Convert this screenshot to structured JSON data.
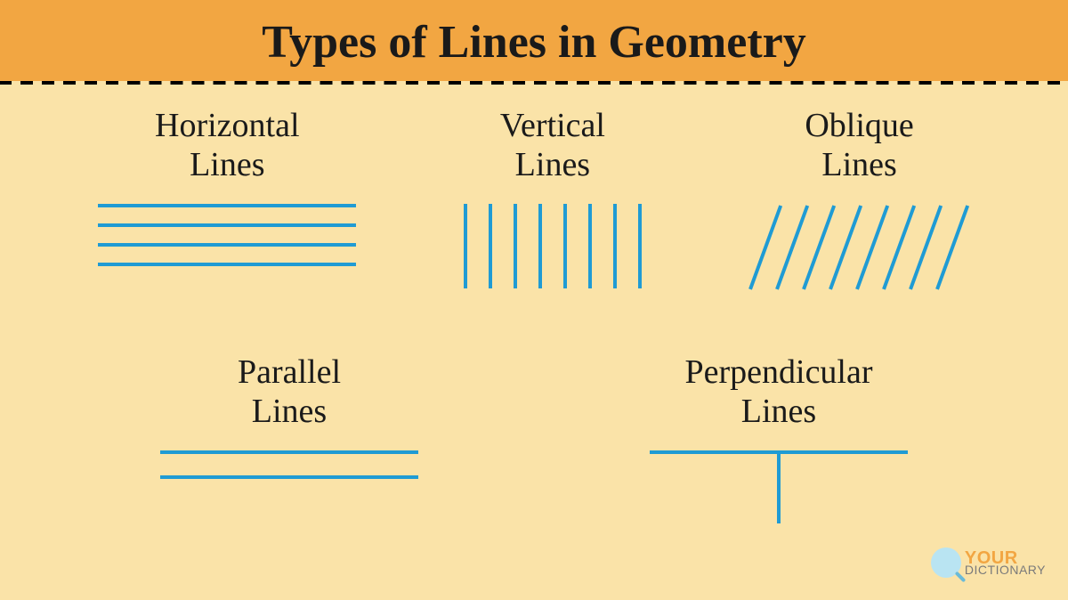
{
  "title": "Types of Lines in Geometry",
  "title_fontsize": 52,
  "title_color": "#1a1a1a",
  "header_bg": "#f2a642",
  "body_bg": "#fae3a8",
  "dash_color": "#000000",
  "dash_width": 4,
  "dash_segment": 14,
  "dash_gap": 10,
  "line_color": "#1f9bd4",
  "line_stroke": 4,
  "label_fontsize": 38,
  "label_color": "#1a1a1a",
  "items": {
    "horizontal": {
      "label_line1": "Horizontal",
      "label_line2": "Lines",
      "line_count": 4,
      "line_length": 290,
      "line_gap": 22
    },
    "vertical": {
      "label_line1": "Vertical",
      "label_line2": "Lines",
      "line_count": 8,
      "line_length": 95,
      "line_gap": 28
    },
    "oblique": {
      "label_line1": "Oblique",
      "label_line2": "Lines",
      "line_count": 8,
      "line_length": 100,
      "line_gap": 30,
      "angle_deg": 70
    },
    "parallel": {
      "label_line1": "Parallel",
      "label_line2": "Lines",
      "line_count": 2,
      "line_length": 290,
      "line_gap": 28
    },
    "perpendicular": {
      "label_line1": "Perpendicular",
      "label_line2": "Lines",
      "h_length": 290,
      "v_length": 78
    }
  },
  "logo": {
    "text1": "YOUR",
    "text2": "DICTIONARY",
    "text1_color": "#f2a642",
    "text2_color": "#7a7a7a",
    "circle_bg": "#b9e4f2",
    "handle_color": "#6bbbd8",
    "fontsize1": 20,
    "fontsize2": 14
  }
}
